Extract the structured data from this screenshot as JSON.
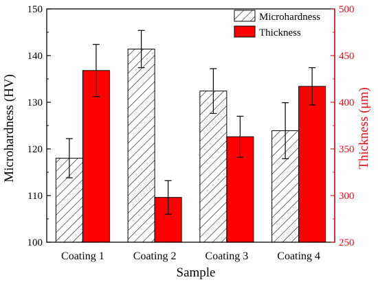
{
  "chart_data": {
    "type": "bar",
    "xlabel": "Sample",
    "ylabel_left": "Microhardness (HV)",
    "ylabel_right": "Thickness (μm)",
    "categories": [
      "Coating 1",
      "Coating 2",
      "Coating 3",
      "Coating 4"
    ],
    "ylim_left": [
      100,
      150
    ],
    "yticks_left": [
      "100",
      "110",
      "120",
      "130",
      "140",
      "150"
    ],
    "ylim_right": [
      250,
      500
    ],
    "yticks_right": [
      "250",
      "300",
      "350",
      "400",
      "450",
      "500"
    ],
    "legend_position": "top-right",
    "series": [
      {
        "name": "Microhardness",
        "axis": "left",
        "values": [
          118.0,
          141.4,
          132.4,
          123.9
        ],
        "errors": [
          4.2,
          4.0,
          4.8,
          6.0
        ],
        "fill": "hatched",
        "color": "#000000"
      },
      {
        "name": "Thickness",
        "axis": "right",
        "values": [
          434,
          298,
          363,
          417
        ],
        "errors": [
          28,
          18,
          22,
          20
        ],
        "fill": "solid",
        "color": "#ff0000"
      }
    ],
    "colors": {
      "left_axis": "#000000",
      "right_axis": "#e0141e",
      "bar_border": "#000000"
    }
  }
}
